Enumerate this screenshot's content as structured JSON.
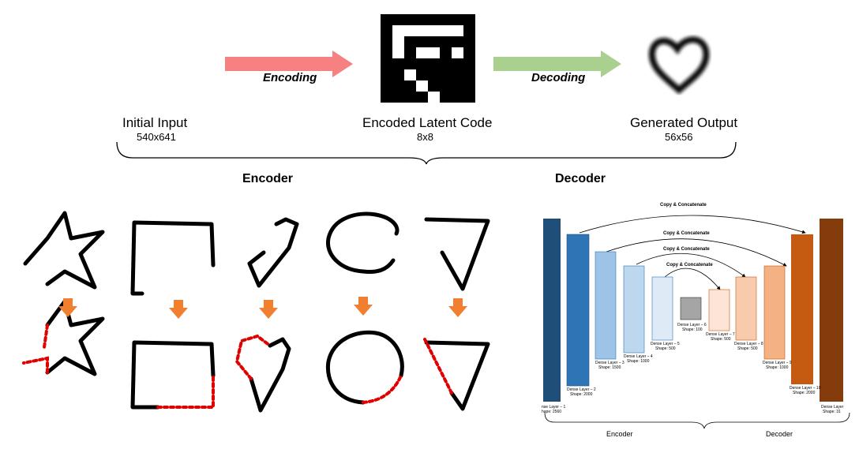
{
  "pipeline": {
    "encoding_label": "Encoding",
    "decoding_label": "Decoding",
    "initial_input": {
      "title": "Initial Input",
      "size": "540x641"
    },
    "latent": {
      "title": "Encoded Latent Code",
      "size": "8x8"
    },
    "output": {
      "title": "Generated Output",
      "size": "56x56"
    },
    "encoder_label": "Encoder",
    "decoder_label": "Decoder",
    "colors": {
      "encoding_arrow": "#f78181",
      "decoding_arrow": "#a9d08e"
    }
  },
  "shapes": {
    "items": [
      "star",
      "square",
      "heart",
      "circle",
      "triangle"
    ],
    "arrow_color": "#f08030",
    "gap_color": "#e00000"
  },
  "network": {
    "copy_label": "Copy & Concatenate",
    "layers": [
      {
        "name": "nse Layer – 1",
        "shape": "hape: 2560"
      },
      {
        "name": "Dense Layer – 2",
        "shape": "Shape: 2000"
      },
      {
        "name": "Dense Layer – 3",
        "shape": "Shape: 1500"
      },
      {
        "name": "Dense Layer – 4",
        "shape": "Shape: 1000"
      },
      {
        "name": "Dense Layer – 5",
        "shape": "Shape: 500"
      },
      {
        "name": "Dense Layer – 6",
        "shape": "Shape: 100"
      },
      {
        "name": "Dense Layer – 7",
        "shape": "Shape: 500"
      },
      {
        "name": "Dense Layer – 8",
        "shape": "Shape: 500"
      },
      {
        "name": "Dense Layer – 9",
        "shape": "Shape: 1000"
      },
      {
        "name": "Dense Layer – 10",
        "shape": "Shape: 2000"
      },
      {
        "name": "Dense Layer",
        "shape": "Shape: 31"
      }
    ],
    "encoder_label": "Encoder",
    "decoder_label": "Decoder"
  }
}
